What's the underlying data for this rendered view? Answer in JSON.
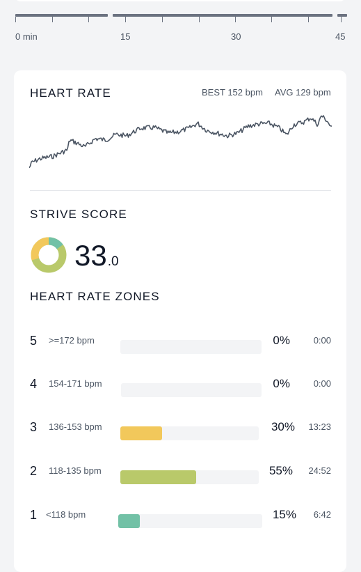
{
  "timeline": {
    "labels": [
      "0 min",
      "15",
      "30",
      "45"
    ]
  },
  "heart_rate": {
    "title": "HEART RATE",
    "best": "BEST 152 bpm",
    "avg": "AVG 129 bpm",
    "line_color": "#4b5563"
  },
  "strive": {
    "title": "STRIVE SCORE",
    "score_int": "33",
    "score_dec": ".0"
  },
  "zones": {
    "title": "HEART RATE ZONES",
    "items": [
      {
        "num": "5",
        "range": ">=172 bpm",
        "pct": "0%",
        "time": "0:00",
        "fraction": 0,
        "color": "#f0c75e"
      },
      {
        "num": "4",
        "range": "154-171 bpm",
        "pct": "0%",
        "time": "0:00",
        "fraction": 0,
        "color": "#f0c75e"
      },
      {
        "num": "3",
        "range": "136-153 bpm",
        "pct": "30%",
        "time": "13:23",
        "fraction": 0.3,
        "color": "#f2c85b"
      },
      {
        "num": "2",
        "range": "118-135 bpm",
        "pct": "55%",
        "time": "24:52",
        "fraction": 0.55,
        "color": "#b9c96a"
      },
      {
        "num": "1",
        "range": "<118 bpm",
        "pct": "15%",
        "time": "6:42",
        "fraction": 0.15,
        "color": "#72c1a6"
      }
    ]
  }
}
